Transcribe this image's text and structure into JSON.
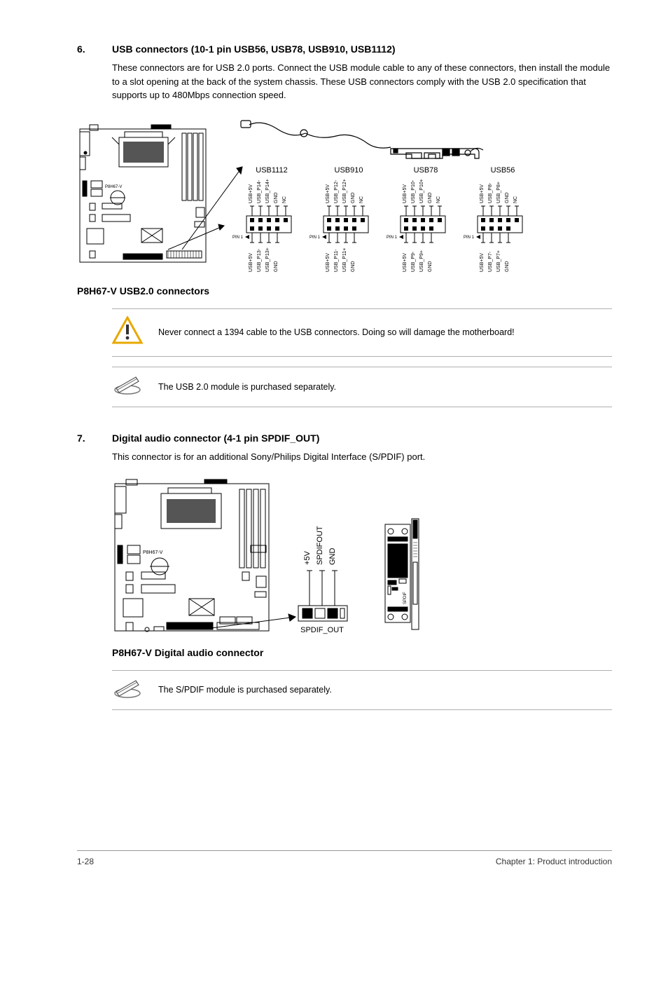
{
  "section6": {
    "number": "6.",
    "title": "USB connectors (10-1 pin USB56, USB78, USB910, USB1112)",
    "body": "These connectors are for USB 2.0 ports. Connect the USB module cable to any of these connectors, then install the module to a slot opening at the back of the system chassis. These USB connectors comply with the USB 2.0 specification that supports up to 480Mbps connection speed."
  },
  "usb_diagram": {
    "caption": "P8H67-V USB2.0 connectors",
    "headers": [
      {
        "label": "USB1112",
        "top_pins": [
          "USB+5V",
          "USB_P14-",
          "USB_P14+",
          "GND",
          "NC"
        ],
        "bottom_pins": [
          "USB+5V",
          "USB_P13-",
          "USB_P13+",
          "GND"
        ],
        "pin1_label": "PIN 1"
      },
      {
        "label": "USB910",
        "top_pins": [
          "USB+5V",
          "USB_P12-",
          "USB_P12+",
          "GND",
          "NC"
        ],
        "bottom_pins": [
          "USB+5V",
          "USB_P11-",
          "USB_P11+",
          "GND"
        ],
        "pin1_label": "PIN 1"
      },
      {
        "label": "USB78",
        "top_pins": [
          "USB+5V",
          "USB_P10-",
          "USB_P10+",
          "GND",
          "NC"
        ],
        "bottom_pins": [
          "USB+5V",
          "USB_P9-",
          "USB_P9+",
          "GND"
        ],
        "pin1_label": "PIN 1"
      },
      {
        "label": "USB56",
        "top_pins": [
          "USB+5V",
          "USB_P8-",
          "USB_P8+",
          "GND",
          "NC"
        ],
        "bottom_pins": [
          "USB+5V",
          "USB_P7-",
          "USB_P7+",
          "GND"
        ],
        "pin1_label": "PIN 1"
      }
    ]
  },
  "warning_note": "Never connect a 1394 cable to the USB connectors. Doing so will damage the motherboard!",
  "info_note_usb": "The USB 2.0 module is purchased separately.",
  "section7": {
    "number": "7.",
    "title": "Digital audio connector (4-1 pin SPDIF_OUT)",
    "body": "This connector is for an additional Sony/Philips Digital Interface (S/PDIF) port."
  },
  "spdif_diagram": {
    "caption": "P8H67-V Digital audio connector",
    "conn_label": "SPDIF_OUT",
    "pins": [
      "+5V",
      "SPDIFOUT",
      "GND"
    ]
  },
  "info_note_spdif": "The S/PDIF module is purchased separately.",
  "footer": {
    "left": "1-28",
    "right": "Chapter 1: Product introduction"
  },
  "colors": {
    "text": "#000000",
    "line": "#333333",
    "border": "#b0b0b0",
    "warn_outline": "#e8a800",
    "warn_fill": "#ffffff"
  }
}
